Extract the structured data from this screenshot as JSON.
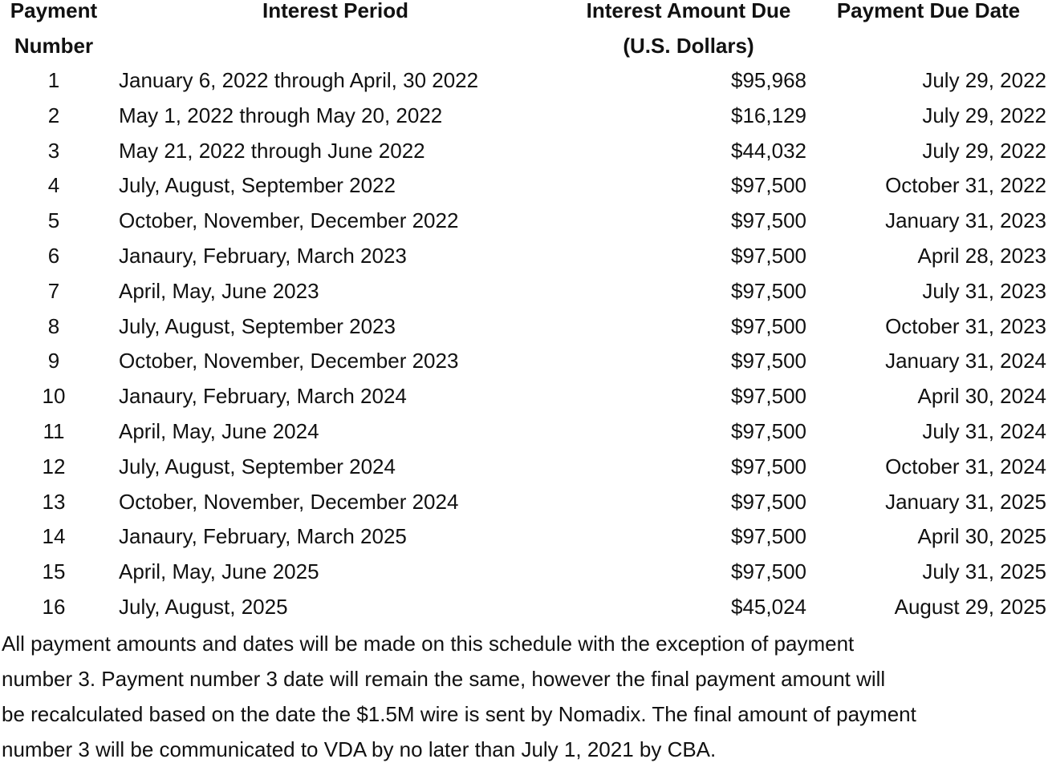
{
  "table": {
    "headers": {
      "number": [
        "Payment",
        "Number"
      ],
      "period": [
        "Interest Period",
        ""
      ],
      "amount": [
        "Interest Amount Due",
        "(U.S. Dollars)"
      ],
      "date": [
        "Payment Due Date",
        ""
      ]
    },
    "rows": [
      {
        "number": "1",
        "period": "January 6, 2022 through April, 30 2022",
        "amount": "$95,968",
        "date": "July 29, 2022"
      },
      {
        "number": "2",
        "period": "May 1, 2022 through May 20, 2022",
        "amount": "$16,129",
        "date": "July 29, 2022"
      },
      {
        "number": "3",
        "period": "May 21, 2022 through June 2022",
        "amount": "$44,032",
        "date": "July 29, 2022"
      },
      {
        "number": "4",
        "period": "July, August, September 2022",
        "amount": "$97,500",
        "date": "October 31, 2022"
      },
      {
        "number": "5",
        "period": "October, November, December 2022",
        "amount": "$97,500",
        "date": "January 31, 2023"
      },
      {
        "number": "6",
        "period": "Janaury, February, March 2023",
        "amount": "$97,500",
        "date": "April 28, 2023"
      },
      {
        "number": "7",
        "period": "April, May, June 2023",
        "amount": "$97,500",
        "date": "July 31, 2023"
      },
      {
        "number": "8",
        "period": "July, August, September 2023",
        "amount": "$97,500",
        "date": "October 31, 2023"
      },
      {
        "number": "9",
        "period": "October, November, December 2023",
        "amount": "$97,500",
        "date": "January 31, 2024"
      },
      {
        "number": "10",
        "period": "Janaury, February, March 2024",
        "amount": "$97,500",
        "date": "April 30, 2024"
      },
      {
        "number": "11",
        "period": "April, May, June 2024",
        "amount": "$97,500",
        "date": "July 31, 2024"
      },
      {
        "number": "12",
        "period": "July, August, September 2024",
        "amount": "$97,500",
        "date": "October 31, 2024"
      },
      {
        "number": "13",
        "period": "October, November, December 2024",
        "amount": "$97,500",
        "date": "January 31, 2025"
      },
      {
        "number": "14",
        "period": "Janaury, February, March 2025",
        "amount": "$97,500",
        "date": "April 30, 2025"
      },
      {
        "number": "15",
        "period": "April, May, June 2025",
        "amount": "$97,500",
        "date": "July 31, 2025"
      },
      {
        "number": "16",
        "period": "July, August, 2025",
        "amount": "$45,024",
        "date": "August 29, 2025"
      }
    ]
  },
  "footer": [
    "All payment amounts and dates will be made on this schedule with the exception of payment",
    "number 3. Payment number 3 date will remain the same, however the final payment amount will",
    "be recalculated based on the date the $1.5M wire is sent by Nomadix. The final amount of payment",
    "number 3 will be communicated to VDA by no later than July 1, 2021 by CBA."
  ]
}
